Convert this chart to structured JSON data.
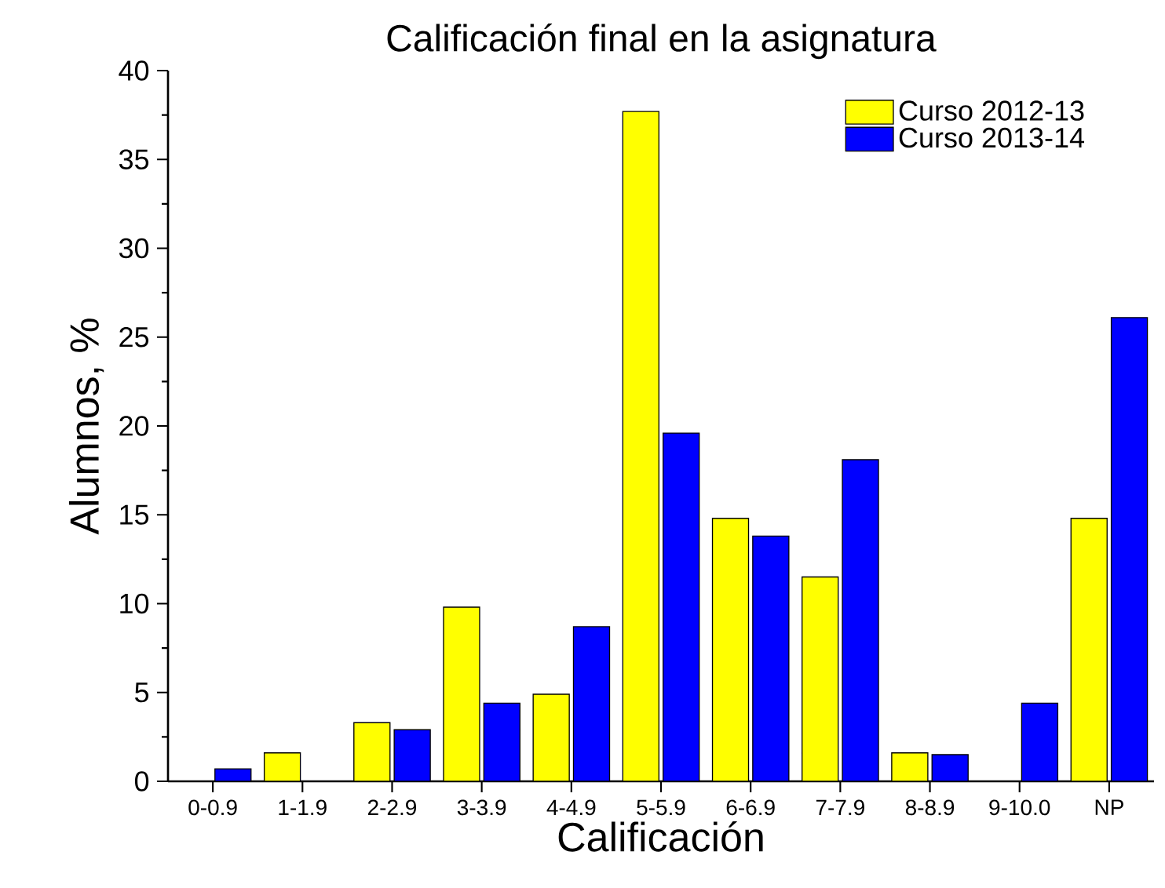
{
  "chart_data": {
    "type": "bar",
    "title": "Calificación final en la asignatura",
    "xlabel": "Calificación",
    "ylabel": "Alumnos, %",
    "categories": [
      "0-0.9",
      "1-1.9",
      "2-2.9",
      "3-3.9",
      "4-4.9",
      "5-5.9",
      "6-6.9",
      "7-7.9",
      "8-8.9",
      "9-10.0",
      "NP"
    ],
    "series": [
      {
        "name": "Curso 2012-13",
        "color": "#ffff00",
        "values": [
          0,
          1.6,
          3.3,
          9.8,
          4.9,
          37.7,
          14.8,
          11.5,
          1.6,
          0,
          14.8
        ]
      },
      {
        "name": "Curso 2013-14",
        "color": "#0000ff",
        "values": [
          0.7,
          0,
          2.9,
          4.4,
          8.7,
          19.6,
          13.8,
          18.1,
          1.5,
          4.4,
          26.1
        ]
      }
    ],
    "ylim": [
      0,
      40
    ],
    "yticks": [
      0,
      5,
      10,
      15,
      20,
      25,
      30,
      35,
      40
    ],
    "legend": "top right"
  }
}
